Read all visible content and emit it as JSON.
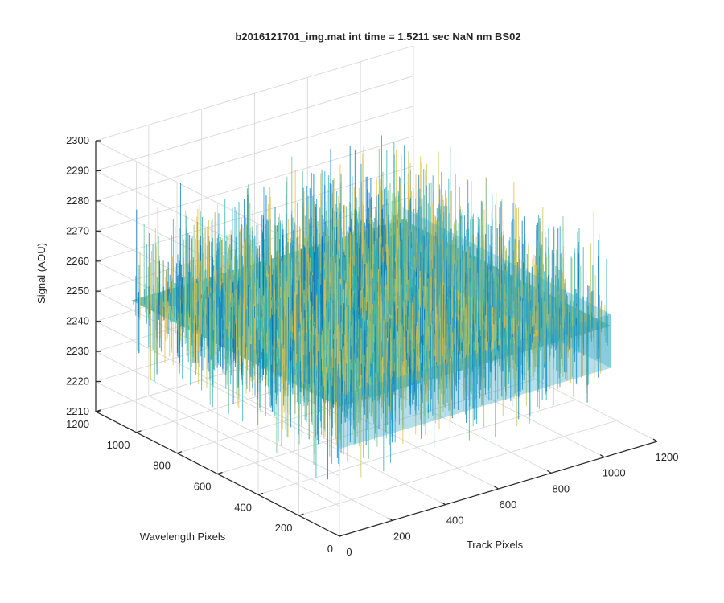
{
  "chart_data": {
    "type": "surface",
    "title": "b2016121701_img.mat int time = 1.5211 sec  NaN nm BS02",
    "xlabel": "Track Pixels",
    "ylabel": "Wavelength Pixels",
    "zlabel": "Signal (ADU)",
    "xlim": [
      0,
      1200
    ],
    "ylim": [
      0,
      1200
    ],
    "zlim": [
      2210,
      2300
    ],
    "x_ticks": [
      "0",
      "200",
      "400",
      "600",
      "800",
      "1000",
      "1200"
    ],
    "y_ticks": [
      "0",
      "200",
      "400",
      "600",
      "800",
      "1000",
      "1200"
    ],
    "z_ticks": [
      "2210",
      "2220",
      "2230",
      "2240",
      "2250",
      "2260",
      "2270",
      "2280",
      "2290",
      "2300"
    ],
    "surface_x_range": [
      0,
      1024
    ],
    "surface_y_range": [
      0,
      1024
    ],
    "surface_mean": 2253,
    "surface_noise_range": [
      2222,
      2290
    ],
    "colormap": [
      "#0072bd",
      "#1e9bd0",
      "#25b0b5",
      "#6cc08f",
      "#c9c458",
      "#eabb3c"
    ],
    "grid": true,
    "box": true
  }
}
